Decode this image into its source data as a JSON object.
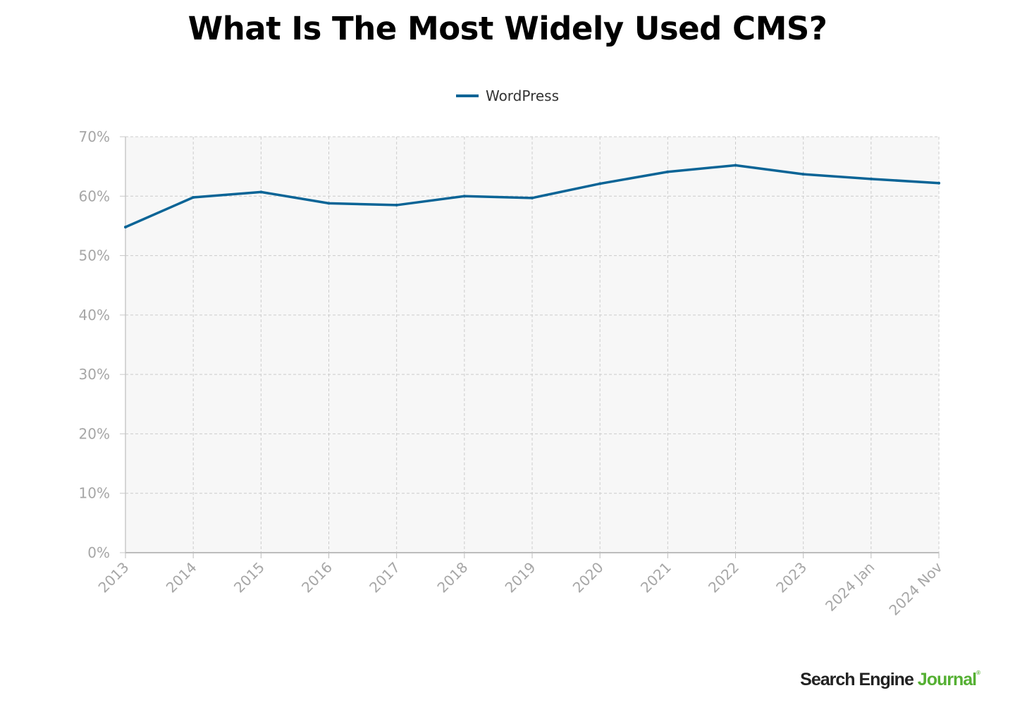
{
  "title": "What Is The Most Widely Used CMS?",
  "brand": {
    "part1": "Search Engine ",
    "part2": "Journal",
    "mark": "®"
  },
  "colors": {
    "series": "#0a6496",
    "plot_bg": "#f7f7f7",
    "grid": "#cccccc",
    "tick_text": "#a6a6a6"
  },
  "chart_data": {
    "type": "line",
    "title": "What Is The Most Widely Used CMS?",
    "legend_position": "top-center",
    "grid": true,
    "categories": [
      "2013",
      "2014",
      "2015",
      "2016",
      "2017",
      "2018",
      "2019",
      "2020",
      "2021",
      "2022",
      "2023",
      "2024 Jan",
      "2024 Nov"
    ],
    "series": [
      {
        "name": "WordPress",
        "values": [
          54.8,
          59.8,
          60.7,
          58.8,
          58.5,
          60.0,
          59.7,
          62.1,
          64.1,
          65.2,
          63.7,
          62.9,
          62.2
        ]
      }
    ],
    "ylim": [
      0,
      70
    ],
    "yticks": [
      "0%",
      "10%",
      "20%",
      "30%",
      "40%",
      "50%",
      "60%",
      "70%"
    ],
    "xlabel": "",
    "ylabel": ""
  }
}
